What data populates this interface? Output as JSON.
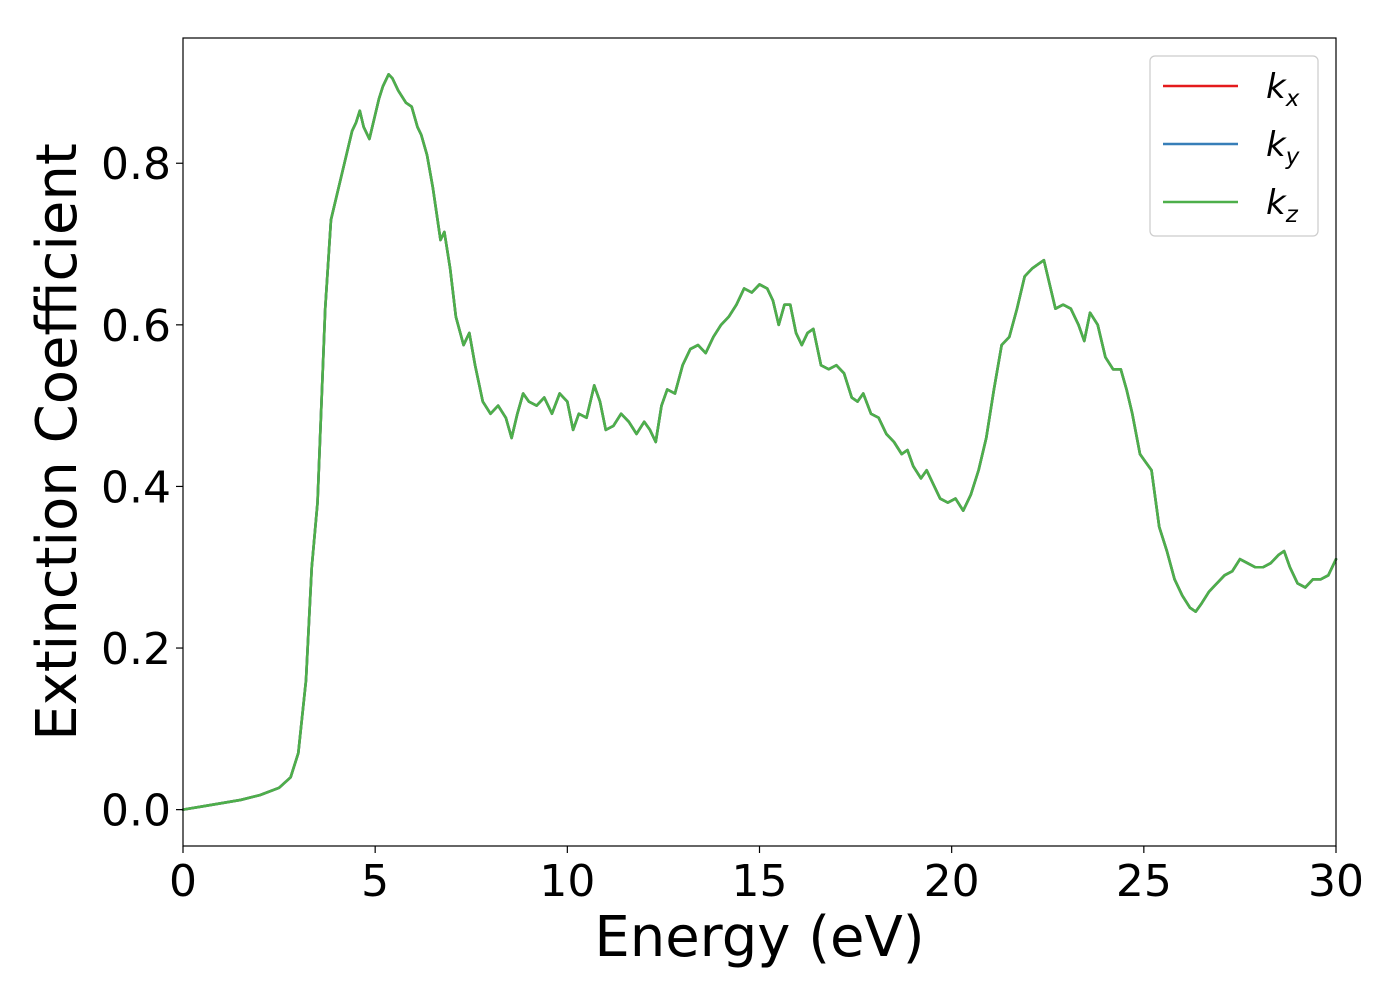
{
  "chart_data": {
    "type": "line",
    "title": "",
    "xlabel": "Energy (eV)",
    "ylabel": "Extinction Coefficient",
    "xlim": [
      0,
      30
    ],
    "ylim": [
      -0.045,
      0.955
    ],
    "xticks": [
      0,
      5,
      10,
      15,
      20,
      25,
      30
    ],
    "xtick_labels": [
      "0",
      "5",
      "10",
      "15",
      "20",
      "25",
      "30"
    ],
    "yticks": [
      0.0,
      0.2,
      0.4,
      0.6,
      0.8
    ],
    "ytick_labels": [
      "0.0",
      "0.2",
      "0.4",
      "0.6",
      "0.8"
    ],
    "grid": false,
    "legend_position": "top-right",
    "series": [
      {
        "name": "k_x",
        "label_main": "k",
        "label_sub": "x",
        "color": "#e41a1c",
        "x": [
          0,
          0.5,
          1,
          1.5,
          2,
          2.5,
          2.8,
          3.0,
          3.2,
          3.35,
          3.5,
          3.7,
          3.85,
          4.0,
          4.2,
          4.4,
          4.5,
          4.6,
          4.7,
          4.85,
          5.0,
          5.1,
          5.2,
          5.35,
          5.45,
          5.6,
          5.8,
          5.95,
          6.1,
          6.2,
          6.35,
          6.5,
          6.7,
          6.8,
          6.95,
          7.1,
          7.3,
          7.45,
          7.6,
          7.8,
          8.0,
          8.2,
          8.4,
          8.55,
          8.7,
          8.85,
          9.0,
          9.2,
          9.4,
          9.6,
          9.8,
          10.0,
          10.15,
          10.3,
          10.5,
          10.7,
          10.85,
          11.0,
          11.2,
          11.4,
          11.6,
          11.8,
          12.0,
          12.15,
          12.3,
          12.45,
          12.6,
          12.8,
          13.0,
          13.2,
          13.4,
          13.6,
          13.8,
          14.0,
          14.2,
          14.4,
          14.6,
          14.8,
          15.0,
          15.2,
          15.35,
          15.5,
          15.65,
          15.8,
          15.95,
          16.1,
          16.25,
          16.4,
          16.6,
          16.8,
          17.0,
          17.2,
          17.4,
          17.55,
          17.7,
          17.9,
          18.1,
          18.3,
          18.5,
          18.7,
          18.85,
          19.0,
          19.2,
          19.35,
          19.5,
          19.7,
          19.9,
          20.1,
          20.3,
          20.5,
          20.7,
          20.9,
          21.1,
          21.3,
          21.5,
          21.7,
          21.9,
          22.1,
          22.25,
          22.4,
          22.55,
          22.7,
          22.9,
          23.1,
          23.3,
          23.45,
          23.6,
          23.8,
          24.0,
          24.2,
          24.4,
          24.55,
          24.7,
          24.9,
          25.05,
          25.2,
          25.4,
          25.6,
          25.8,
          26.0,
          26.2,
          26.35,
          26.5,
          26.7,
          26.9,
          27.1,
          27.3,
          27.5,
          27.7,
          27.9,
          28.1,
          28.3,
          28.5,
          28.65,
          28.8,
          29.0,
          29.2,
          29.4,
          29.6,
          29.8,
          30.0
        ],
        "y": [
          0.0,
          0.004,
          0.008,
          0.012,
          0.018,
          0.027,
          0.04,
          0.07,
          0.16,
          0.3,
          0.38,
          0.62,
          0.73,
          0.76,
          0.8,
          0.84,
          0.85,
          0.865,
          0.845,
          0.83,
          0.86,
          0.88,
          0.895,
          0.91,
          0.905,
          0.89,
          0.875,
          0.87,
          0.845,
          0.835,
          0.81,
          0.77,
          0.705,
          0.715,
          0.67,
          0.61,
          0.575,
          0.59,
          0.55,
          0.505,
          0.49,
          0.5,
          0.485,
          0.46,
          0.49,
          0.515,
          0.505,
          0.5,
          0.51,
          0.49,
          0.515,
          0.505,
          0.47,
          0.49,
          0.485,
          0.525,
          0.505,
          0.47,
          0.475,
          0.49,
          0.48,
          0.465,
          0.48,
          0.47,
          0.455,
          0.5,
          0.52,
          0.515,
          0.55,
          0.57,
          0.575,
          0.565,
          0.585,
          0.6,
          0.61,
          0.625,
          0.645,
          0.64,
          0.65,
          0.645,
          0.63,
          0.6,
          0.625,
          0.625,
          0.59,
          0.575,
          0.59,
          0.595,
          0.55,
          0.545,
          0.55,
          0.54,
          0.51,
          0.505,
          0.515,
          0.49,
          0.485,
          0.465,
          0.455,
          0.44,
          0.445,
          0.425,
          0.41,
          0.42,
          0.405,
          0.385,
          0.38,
          0.385,
          0.37,
          0.39,
          0.42,
          0.46,
          0.52,
          0.575,
          0.585,
          0.62,
          0.66,
          0.67,
          0.675,
          0.68,
          0.65,
          0.62,
          0.625,
          0.62,
          0.6,
          0.58,
          0.615,
          0.6,
          0.56,
          0.545,
          0.545,
          0.52,
          0.49,
          0.44,
          0.43,
          0.42,
          0.35,
          0.32,
          0.285,
          0.265,
          0.25,
          0.245,
          0.255,
          0.27,
          0.28,
          0.29,
          0.295,
          0.31,
          0.305,
          0.3,
          0.3,
          0.305,
          0.315,
          0.32,
          0.3,
          0.28,
          0.275,
          0.285,
          0.285,
          0.29,
          0.31
        ]
      },
      {
        "name": "k_y",
        "label_main": "k",
        "label_sub": "y",
        "color": "#377eb8",
        "x": [
          0,
          0.5,
          1,
          1.5,
          2,
          2.5,
          2.8,
          3.0,
          3.2,
          3.35,
          3.5,
          3.7,
          3.85,
          4.0,
          4.2,
          4.4,
          4.5,
          4.6,
          4.7,
          4.85,
          5.0,
          5.1,
          5.2,
          5.35,
          5.45,
          5.6,
          5.8,
          5.95,
          6.1,
          6.2,
          6.35,
          6.5,
          6.7,
          6.8,
          6.95,
          7.1,
          7.3,
          7.45,
          7.6,
          7.8,
          8.0,
          8.2,
          8.4,
          8.55,
          8.7,
          8.85,
          9.0,
          9.2,
          9.4,
          9.6,
          9.8,
          10.0,
          10.15,
          10.3,
          10.5,
          10.7,
          10.85,
          11.0,
          11.2,
          11.4,
          11.6,
          11.8,
          12.0,
          12.15,
          12.3,
          12.45,
          12.6,
          12.8,
          13.0,
          13.2,
          13.4,
          13.6,
          13.8,
          14.0,
          14.2,
          14.4,
          14.6,
          14.8,
          15.0,
          15.2,
          15.35,
          15.5,
          15.65,
          15.8,
          15.95,
          16.1,
          16.25,
          16.4,
          16.6,
          16.8,
          17.0,
          17.2,
          17.4,
          17.55,
          17.7,
          17.9,
          18.1,
          18.3,
          18.5,
          18.7,
          18.85,
          19.0,
          19.2,
          19.35,
          19.5,
          19.7,
          19.9,
          20.1,
          20.3,
          20.5,
          20.7,
          20.9,
          21.1,
          21.3,
          21.5,
          21.7,
          21.9,
          22.1,
          22.25,
          22.4,
          22.55,
          22.7,
          22.9,
          23.1,
          23.3,
          23.45,
          23.6,
          23.8,
          24.0,
          24.2,
          24.4,
          24.55,
          24.7,
          24.9,
          25.05,
          25.2,
          25.4,
          25.6,
          25.8,
          26.0,
          26.2,
          26.35,
          26.5,
          26.7,
          26.9,
          27.1,
          27.3,
          27.5,
          27.7,
          27.9,
          28.1,
          28.3,
          28.5,
          28.65,
          28.8,
          29.0,
          29.2,
          29.4,
          29.6,
          29.8,
          30.0
        ],
        "y": [
          0.0,
          0.004,
          0.008,
          0.012,
          0.018,
          0.027,
          0.04,
          0.07,
          0.16,
          0.3,
          0.38,
          0.62,
          0.73,
          0.76,
          0.8,
          0.84,
          0.85,
          0.865,
          0.845,
          0.83,
          0.86,
          0.88,
          0.895,
          0.91,
          0.905,
          0.89,
          0.875,
          0.87,
          0.845,
          0.835,
          0.81,
          0.77,
          0.705,
          0.715,
          0.67,
          0.61,
          0.575,
          0.59,
          0.55,
          0.505,
          0.49,
          0.5,
          0.485,
          0.46,
          0.49,
          0.515,
          0.505,
          0.5,
          0.51,
          0.49,
          0.515,
          0.505,
          0.47,
          0.49,
          0.485,
          0.525,
          0.505,
          0.47,
          0.475,
          0.49,
          0.48,
          0.465,
          0.48,
          0.47,
          0.455,
          0.5,
          0.52,
          0.515,
          0.55,
          0.57,
          0.575,
          0.565,
          0.585,
          0.6,
          0.61,
          0.625,
          0.645,
          0.64,
          0.65,
          0.645,
          0.63,
          0.6,
          0.625,
          0.625,
          0.59,
          0.575,
          0.59,
          0.595,
          0.55,
          0.545,
          0.55,
          0.54,
          0.51,
          0.505,
          0.515,
          0.49,
          0.485,
          0.465,
          0.455,
          0.44,
          0.445,
          0.425,
          0.41,
          0.42,
          0.405,
          0.385,
          0.38,
          0.385,
          0.37,
          0.39,
          0.42,
          0.46,
          0.52,
          0.575,
          0.585,
          0.62,
          0.66,
          0.67,
          0.675,
          0.68,
          0.65,
          0.62,
          0.625,
          0.62,
          0.6,
          0.58,
          0.615,
          0.6,
          0.56,
          0.545,
          0.545,
          0.52,
          0.49,
          0.44,
          0.43,
          0.42,
          0.35,
          0.32,
          0.285,
          0.265,
          0.25,
          0.245,
          0.255,
          0.27,
          0.28,
          0.29,
          0.295,
          0.31,
          0.305,
          0.3,
          0.3,
          0.305,
          0.315,
          0.32,
          0.3,
          0.28,
          0.275,
          0.285,
          0.285,
          0.29,
          0.31
        ]
      },
      {
        "name": "k_z",
        "label_main": "k",
        "label_sub": "z",
        "color": "#4daf4a",
        "x": [
          0,
          0.5,
          1,
          1.5,
          2,
          2.5,
          2.8,
          3.0,
          3.2,
          3.35,
          3.5,
          3.7,
          3.85,
          4.0,
          4.2,
          4.4,
          4.5,
          4.6,
          4.7,
          4.85,
          5.0,
          5.1,
          5.2,
          5.35,
          5.45,
          5.6,
          5.8,
          5.95,
          6.1,
          6.2,
          6.35,
          6.5,
          6.7,
          6.8,
          6.95,
          7.1,
          7.3,
          7.45,
          7.6,
          7.8,
          8.0,
          8.2,
          8.4,
          8.55,
          8.7,
          8.85,
          9.0,
          9.2,
          9.4,
          9.6,
          9.8,
          10.0,
          10.15,
          10.3,
          10.5,
          10.7,
          10.85,
          11.0,
          11.2,
          11.4,
          11.6,
          11.8,
          12.0,
          12.15,
          12.3,
          12.45,
          12.6,
          12.8,
          13.0,
          13.2,
          13.4,
          13.6,
          13.8,
          14.0,
          14.2,
          14.4,
          14.6,
          14.8,
          15.0,
          15.2,
          15.35,
          15.5,
          15.65,
          15.8,
          15.95,
          16.1,
          16.25,
          16.4,
          16.6,
          16.8,
          17.0,
          17.2,
          17.4,
          17.55,
          17.7,
          17.9,
          18.1,
          18.3,
          18.5,
          18.7,
          18.85,
          19.0,
          19.2,
          19.35,
          19.5,
          19.7,
          19.9,
          20.1,
          20.3,
          20.5,
          20.7,
          20.9,
          21.1,
          21.3,
          21.5,
          21.7,
          21.9,
          22.1,
          22.25,
          22.4,
          22.55,
          22.7,
          22.9,
          23.1,
          23.3,
          23.45,
          23.6,
          23.8,
          24.0,
          24.2,
          24.4,
          24.55,
          24.7,
          24.9,
          25.05,
          25.2,
          25.4,
          25.6,
          25.8,
          26.0,
          26.2,
          26.35,
          26.5,
          26.7,
          26.9,
          27.1,
          27.3,
          27.5,
          27.7,
          27.9,
          28.1,
          28.3,
          28.5,
          28.65,
          28.8,
          29.0,
          29.2,
          29.4,
          29.6,
          29.8,
          30.0
        ],
        "y": [
          0.0,
          0.004,
          0.008,
          0.012,
          0.018,
          0.027,
          0.04,
          0.07,
          0.16,
          0.3,
          0.38,
          0.62,
          0.73,
          0.76,
          0.8,
          0.84,
          0.85,
          0.865,
          0.845,
          0.83,
          0.86,
          0.88,
          0.895,
          0.91,
          0.905,
          0.89,
          0.875,
          0.87,
          0.845,
          0.835,
          0.81,
          0.77,
          0.705,
          0.715,
          0.67,
          0.61,
          0.575,
          0.59,
          0.55,
          0.505,
          0.49,
          0.5,
          0.485,
          0.46,
          0.49,
          0.515,
          0.505,
          0.5,
          0.51,
          0.49,
          0.515,
          0.505,
          0.47,
          0.49,
          0.485,
          0.525,
          0.505,
          0.47,
          0.475,
          0.49,
          0.48,
          0.465,
          0.48,
          0.47,
          0.455,
          0.5,
          0.52,
          0.515,
          0.55,
          0.57,
          0.575,
          0.565,
          0.585,
          0.6,
          0.61,
          0.625,
          0.645,
          0.64,
          0.65,
          0.645,
          0.63,
          0.6,
          0.625,
          0.625,
          0.59,
          0.575,
          0.59,
          0.595,
          0.55,
          0.545,
          0.55,
          0.54,
          0.51,
          0.505,
          0.515,
          0.49,
          0.485,
          0.465,
          0.455,
          0.44,
          0.445,
          0.425,
          0.41,
          0.42,
          0.405,
          0.385,
          0.38,
          0.385,
          0.37,
          0.39,
          0.42,
          0.46,
          0.52,
          0.575,
          0.585,
          0.62,
          0.66,
          0.67,
          0.675,
          0.68,
          0.65,
          0.62,
          0.625,
          0.62,
          0.6,
          0.58,
          0.615,
          0.6,
          0.56,
          0.545,
          0.545,
          0.52,
          0.49,
          0.44,
          0.43,
          0.42,
          0.35,
          0.32,
          0.285,
          0.265,
          0.25,
          0.245,
          0.255,
          0.27,
          0.28,
          0.29,
          0.295,
          0.31,
          0.305,
          0.3,
          0.3,
          0.305,
          0.315,
          0.32,
          0.3,
          0.28,
          0.275,
          0.285,
          0.285,
          0.29,
          0.31
        ]
      }
    ]
  }
}
